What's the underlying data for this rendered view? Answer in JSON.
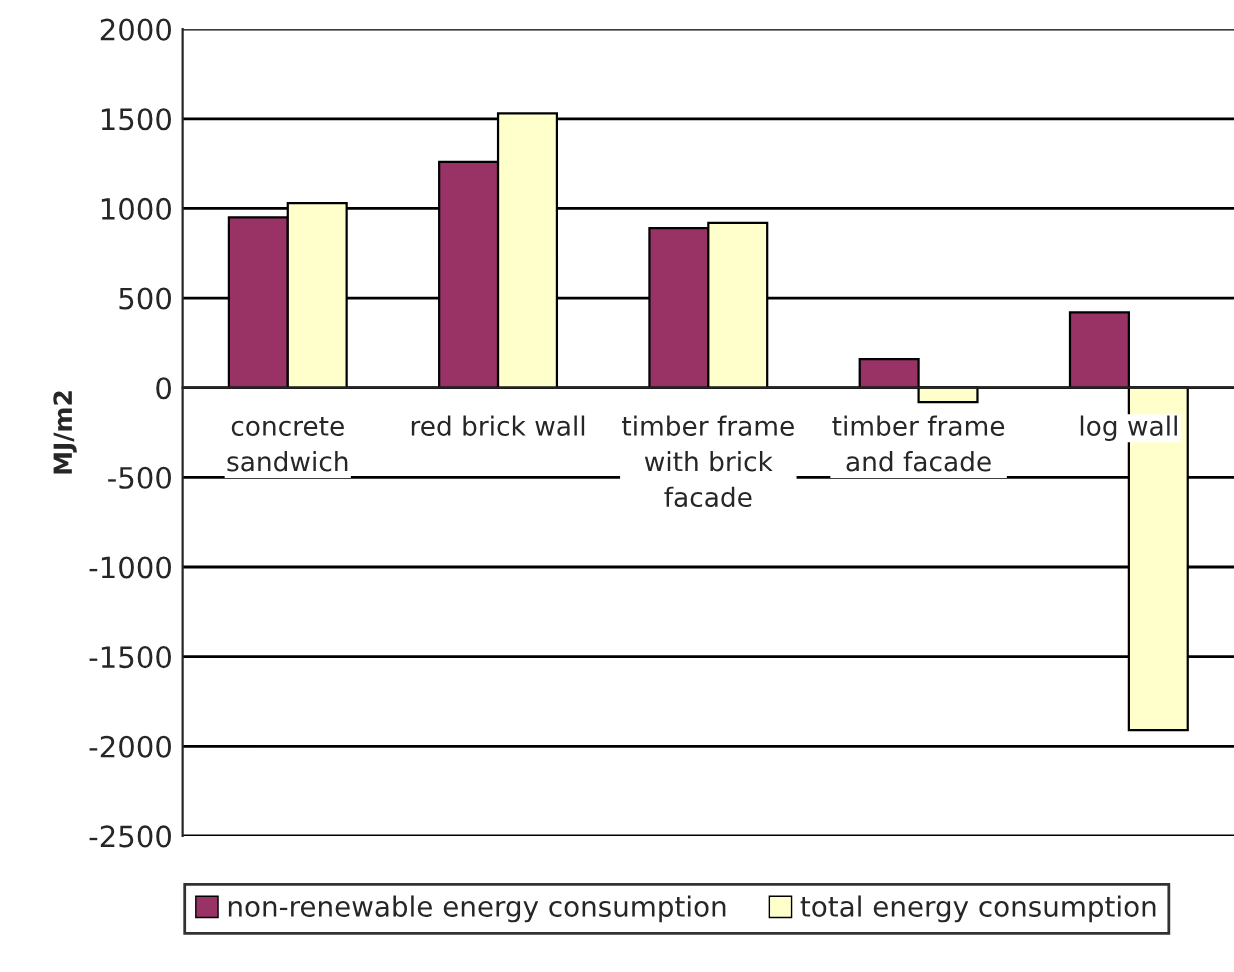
{
  "chart_data": {
    "type": "bar",
    "ylabel": "MJ/m2",
    "categories": [
      "concrete sandwich",
      "red brick wall",
      "timber frame with brick facade",
      "timber frame and facade",
      "log wall"
    ],
    "series": [
      {
        "name": "non-renewable energy consumption",
        "color": "#993366",
        "values": [
          950,
          1260,
          890,
          160,
          420
        ]
      },
      {
        "name": "total energy consumption",
        "color": "#ffffcc",
        "values": [
          1030,
          1530,
          920,
          -80,
          -1910
        ]
      }
    ],
    "ylim": [
      -2500,
      2000
    ],
    "yticks": [
      -2500,
      -2000,
      -1500,
      -1000,
      -500,
      0,
      500,
      1000,
      1500,
      2000
    ],
    "grid": "y",
    "legend": "bottom"
  }
}
